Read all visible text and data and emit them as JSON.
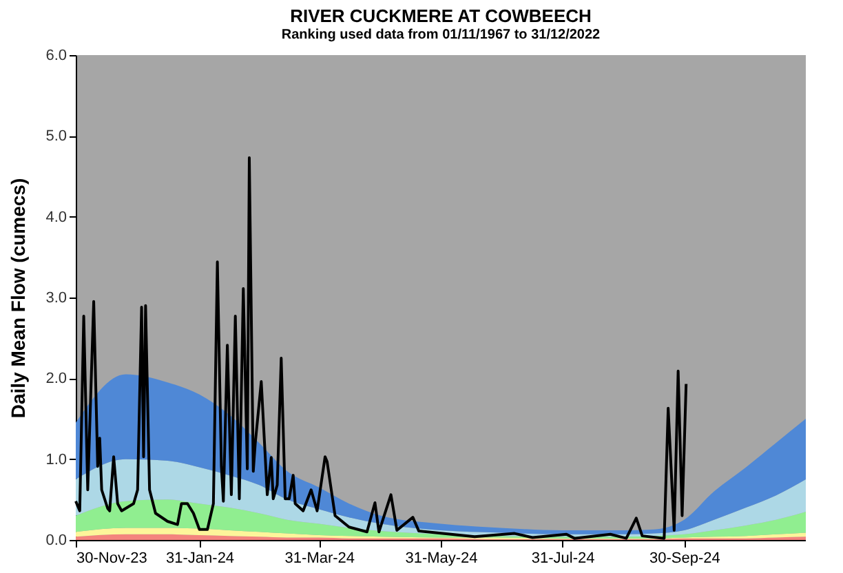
{
  "chart_data": {
    "type": "area",
    "title": "RIVER CUCKMERE AT COWBEECH",
    "subtitle": "Ranking used data from 01/11/1967 to 31/12/2022",
    "ylabel": "Daily Mean Flow (cumecs)",
    "stacked": true,
    "grid": false,
    "xlim": [
      "2023-11-30",
      "2024-11-30"
    ],
    "xticks": [
      {
        "value": "2023-11-30",
        "label": "30-Nov-23"
      },
      {
        "value": "2024-01-31",
        "label": "31-Jan-24"
      },
      {
        "value": "2024-03-31",
        "label": "31-Mar-24"
      },
      {
        "value": "2024-05-31",
        "label": "31-May-24"
      },
      {
        "value": "2024-07-31",
        "label": "31-Jul-24"
      },
      {
        "value": "2024-09-30",
        "label": "30-Sep-24"
      }
    ],
    "ylim": [
      0,
      6
    ],
    "yticks": [
      {
        "value": 0,
        "label": "0.0"
      },
      {
        "value": 1,
        "label": "1.0"
      },
      {
        "value": 2,
        "label": "2.0"
      },
      {
        "value": 3,
        "label": "3.0"
      },
      {
        "value": 4,
        "label": "4.0"
      },
      {
        "value": 5,
        "label": "5.0"
      },
      {
        "value": 6,
        "label": "6.0"
      }
    ],
    "x": [
      "2023-11-30",
      "2023-12-25",
      "2024-01-15",
      "2024-01-31",
      "2024-02-15",
      "2024-03-01",
      "2024-03-15",
      "2024-03-31",
      "2024-04-15",
      "2024-05-01",
      "2024-05-31",
      "2024-06-30",
      "2024-07-31",
      "2024-08-31",
      "2024-09-15",
      "2024-09-30",
      "2024-10-15",
      "2024-10-31",
      "2024-11-15",
      "2024-11-30"
    ],
    "series": [
      {
        "color": "#f4837d",
        "values": [
          0.04,
          0.07,
          0.07,
          0.06,
          0.05,
          0.04,
          0.03,
          0.03,
          0.02,
          0.02,
          0.02,
          0.01,
          0.01,
          0.01,
          0.01,
          0.02,
          0.02,
          0.02,
          0.03,
          0.04
        ]
      },
      {
        "color": "#fdf59a",
        "values": [
          0.06,
          0.08,
          0.08,
          0.08,
          0.07,
          0.06,
          0.05,
          0.03,
          0.03,
          0.02,
          0.01,
          0.02,
          0.01,
          0.01,
          0.01,
          0.01,
          0.02,
          0.03,
          0.04,
          0.05
        ]
      },
      {
        "color": "#90ee90",
        "values": [
          0.2,
          0.33,
          0.35,
          0.31,
          0.28,
          0.23,
          0.17,
          0.14,
          0.1,
          0.07,
          0.04,
          0.02,
          0.02,
          0.02,
          0.03,
          0.04,
          0.08,
          0.13,
          0.18,
          0.26
        ]
      },
      {
        "color": "#add8e6",
        "values": [
          0.45,
          0.52,
          0.48,
          0.45,
          0.4,
          0.35,
          0.25,
          0.18,
          0.13,
          0.09,
          0.05,
          0.04,
          0.03,
          0.03,
          0.03,
          0.05,
          0.13,
          0.22,
          0.3,
          0.4
        ]
      },
      {
        "color": "#4f88d6",
        "values": [
          0.7,
          1.05,
          0.97,
          0.9,
          0.75,
          0.52,
          0.35,
          0.27,
          0.17,
          0.1,
          0.08,
          0.06,
          0.05,
          0.05,
          0.05,
          0.13,
          0.35,
          0.5,
          0.65,
          0.75
        ]
      },
      {
        "type": "line",
        "color": "#000000",
        "x": [
          "2023-11-30",
          "2023-12-02",
          "2023-12-04",
          "2023-12-06",
          "2023-12-09",
          "2023-12-11",
          "2023-12-12",
          "2023-12-13",
          "2023-12-16",
          "2023-12-17",
          "2023-12-19",
          "2023-12-21",
          "2023-12-23",
          "2023-12-29",
          "2023-12-31",
          "2024-01-02",
          "2024-01-03",
          "2024-01-04",
          "2024-01-06",
          "2024-01-09",
          "2024-01-15",
          "2024-01-20",
          "2024-01-22",
          "2024-01-25",
          "2024-01-28",
          "2024-01-31",
          "2024-02-04",
          "2024-02-07",
          "2024-02-09",
          "2024-02-11",
          "2024-02-12",
          "2024-02-14",
          "2024-02-16",
          "2024-02-18",
          "2024-02-20",
          "2024-02-22",
          "2024-02-24",
          "2024-02-25",
          "2024-02-27",
          "2024-02-28",
          "2024-03-02",
          "2024-03-05",
          "2024-03-07",
          "2024-03-08",
          "2024-03-10",
          "2024-03-12",
          "2024-03-14",
          "2024-03-16",
          "2024-03-18",
          "2024-03-19",
          "2024-03-23",
          "2024-03-27",
          "2024-03-30",
          "2024-04-03",
          "2024-04-04",
          "2024-04-08",
          "2024-04-15",
          "2024-04-24",
          "2024-04-28",
          "2024-04-30",
          "2024-05-06",
          "2024-05-09",
          "2024-05-17",
          "2024-05-20",
          "2024-06-17",
          "2024-07-07",
          "2024-07-16",
          "2024-08-02",
          "2024-08-06",
          "2024-08-24",
          "2024-09-01",
          "2024-09-06",
          "2024-09-09",
          "2024-09-20",
          "2024-09-22",
          "2024-09-25",
          "2024-09-27",
          "2024-09-29",
          "2024-10-01"
        ],
        "values": [
          0.48,
          0.36,
          2.77,
          0.62,
          2.95,
          0.91,
          1.26,
          0.62,
          0.39,
          0.36,
          1.03,
          0.45,
          0.36,
          0.45,
          0.62,
          2.88,
          1.03,
          2.9,
          0.62,
          0.33,
          0.23,
          0.19,
          0.45,
          0.45,
          0.33,
          0.13,
          0.13,
          0.45,
          3.44,
          0.91,
          0.48,
          2.41,
          0.56,
          2.77,
          0.51,
          3.11,
          0.88,
          4.73,
          0.85,
          1.2,
          1.96,
          0.56,
          1.02,
          0.51,
          0.68,
          2.25,
          0.51,
          0.51,
          0.8,
          0.45,
          0.36,
          0.62,
          0.36,
          1.03,
          0.97,
          0.3,
          0.16,
          0.1,
          0.46,
          0.1,
          0.56,
          0.12,
          0.28,
          0.11,
          0.04,
          0.08,
          0.03,
          0.07,
          0.02,
          0.07,
          0.02,
          0.27,
          0.05,
          0.02,
          1.63,
          0.12,
          2.09,
          0.3,
          1.93
        ]
      }
    ]
  }
}
